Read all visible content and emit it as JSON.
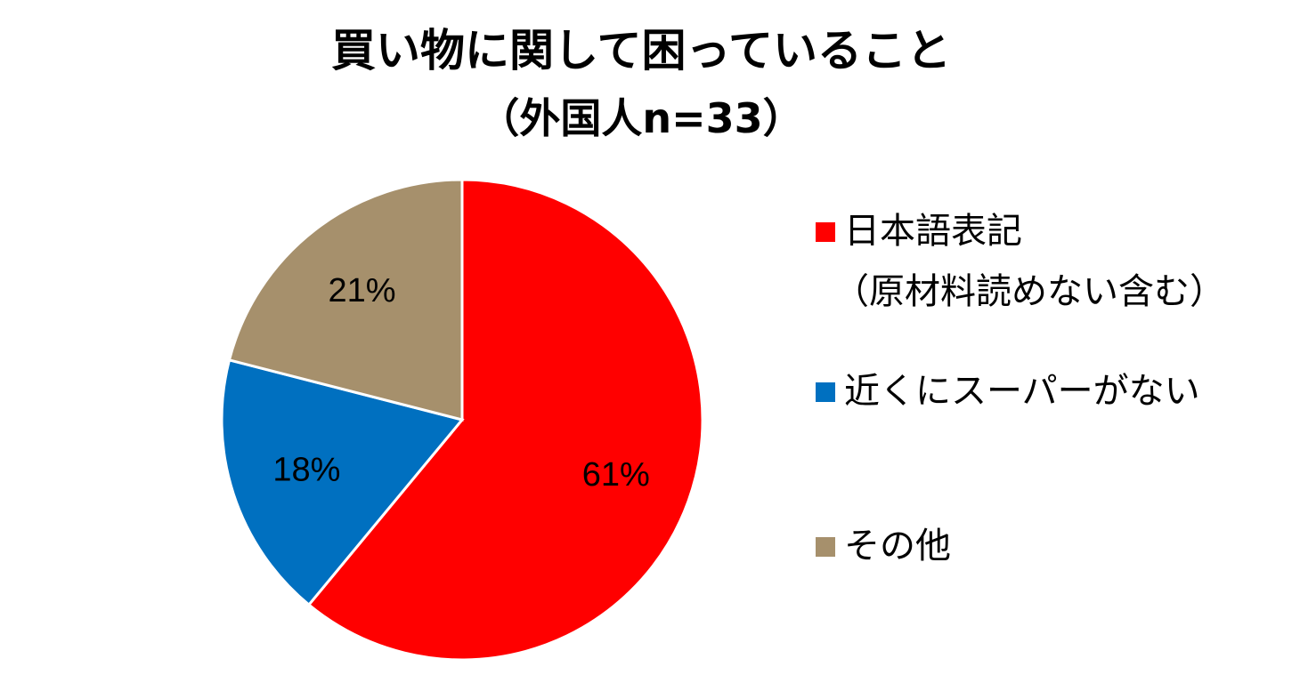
{
  "chart_data": {
    "type": "pie",
    "title": "買い物に関して困っていること",
    "subtitle": "（外国人n=33）",
    "legend_position": "right",
    "slices": [
      {
        "label": "日本語表記",
        "label_line2": "（原材料読めない含む）",
        "value": 61,
        "data_label": "61%",
        "color": "#ff0000"
      },
      {
        "label": "近くにスーパーがない",
        "value": 18,
        "data_label": "18%",
        "color": "#0070c0"
      },
      {
        "label": "その他",
        "value": 21,
        "data_label": "21%",
        "color": "#a6906c"
      }
    ]
  }
}
